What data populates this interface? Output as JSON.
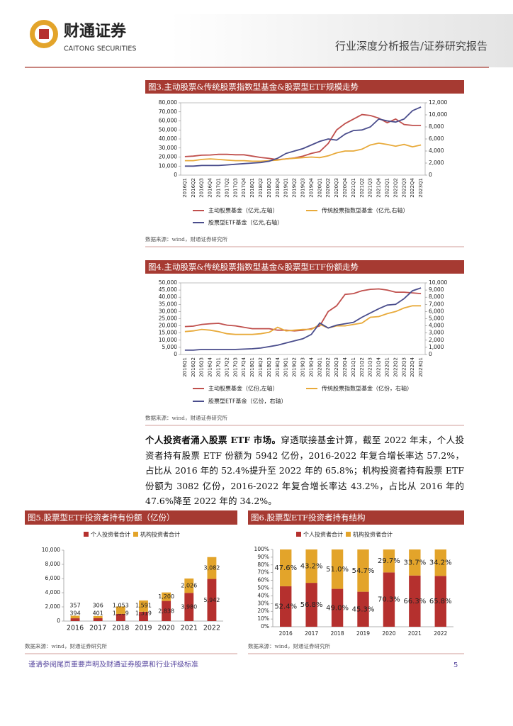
{
  "header": {
    "logo_cn": "财通证券",
    "logo_en": "CAITONG SECURITIES",
    "report_type": "行业深度分析报告/证券研究报告"
  },
  "chart_data": [
    {
      "type": "line",
      "title": "图3.主动股票&传统股票指数型基金&股票型ETF规模走势",
      "source": "数据来源：wind，财通证券研究所",
      "categories": [
        "2016Q1",
        "2016Q2",
        "2016Q3",
        "2016Q4",
        "2017Q1",
        "2017Q2",
        "2017Q3",
        "2017Q4",
        "2018Q1",
        "2018Q2",
        "2018Q3",
        "2018Q4",
        "2019Q1",
        "2019Q2",
        "2019Q3",
        "2019Q4",
        "2020Q1",
        "2020Q2",
        "2020Q3",
        "2020Q4",
        "2021Q1",
        "2021Q2",
        "2021Q3",
        "2021Q4",
        "2022Q1",
        "2022Q2",
        "2022Q3",
        "2022Q4",
        "2023Q1"
      ],
      "ylim": [
        0,
        80000
      ],
      "yticks": [
        0,
        {
          "value": 10000,
          "label": "10,000"
        },
        {
          "value": 20000,
          "label": "20,000"
        },
        {
          "value": 30000,
          "label": "30,000"
        },
        {
          "value": 40000,
          "label": "40,000"
        },
        {
          "value": 50000,
          "label": "50,000"
        },
        {
          "value": 60000,
          "label": "60,000"
        },
        {
          "value": 70000,
          "label": "70,000"
        },
        {
          "value": 80000,
          "label": "80,000"
        }
      ],
      "y2lim": [
        0,
        12000
      ],
      "y2ticks": [
        0,
        {
          "value": 2000,
          "label": "2,000"
        },
        {
          "value": 4000,
          "label": "4,000"
        },
        {
          "value": 6000,
          "label": "6,000"
        },
        {
          "value": 8000,
          "label": "8,000"
        },
        {
          "value": 10000,
          "label": "10,000"
        },
        {
          "value": 12000,
          "label": "12,000"
        }
      ],
      "series": [
        {
          "name": "主动股票基金（亿元,左轴）",
          "color": "#c0504d",
          "values": [
            20500,
            21000,
            22000,
            22300,
            23000,
            23000,
            22500,
            22500,
            21000,
            19500,
            18500,
            17000,
            18000,
            19000,
            21000,
            24000,
            26000,
            35000,
            50000,
            57000,
            62000,
            67000,
            66000,
            63000,
            58000,
            62000,
            56000,
            55000,
            55000
          ]
        },
        {
          "name": "传统股票指数型基金（亿元,右轴）",
          "color": "#e8aa3a",
          "axis": "y2",
          "values": [
            2400,
            2400,
            2600,
            2700,
            2600,
            2500,
            2400,
            2400,
            2300,
            2300,
            2400,
            2500,
            2700,
            2800,
            2900,
            3000,
            2900,
            3200,
            3700,
            4000,
            4000,
            4300,
            5000,
            5300,
            5100,
            4800,
            5100,
            4700,
            5000
          ]
        },
        {
          "name": "股票型ETF基金（亿元,右轴）",
          "color": "#4a4d8c",
          "axis": "y2",
          "values": [
            1500,
            1500,
            1600,
            1600,
            1600,
            1700,
            1800,
            1900,
            2000,
            2100,
            2300,
            2800,
            3600,
            4000,
            4400,
            5000,
            5600,
            6000,
            5800,
            6800,
            7400,
            7500,
            8000,
            9300,
            9000,
            8800,
            9300,
            10700,
            11300
          ]
        }
      ]
    },
    {
      "type": "line",
      "title": "图4.主动股票&传统股票指数型基金&股票型ETF份额走势",
      "source": "数据来源：wind，财通证券研究所",
      "categories": [
        "2016Q1",
        "2016Q2",
        "2016Q3",
        "2016Q4",
        "2017Q1",
        "2017Q2",
        "2017Q3",
        "2017Q4",
        "2018Q1",
        "2018Q2",
        "2018Q3",
        "2018Q4",
        "2019Q1",
        "2019Q2",
        "2019Q3",
        "2019Q4",
        "2020Q1",
        "2020Q2",
        "2020Q3",
        "2020Q4",
        "2021Q1",
        "2021Q2",
        "2021Q3",
        "2021Q4",
        "2022Q1",
        "2022Q2",
        "2022Q3",
        "2022Q4",
        "2023Q1"
      ],
      "ylim": [
        0,
        50000
      ],
      "yticks": [
        0,
        {
          "value": 5000,
          "label": "5,000"
        },
        {
          "value": 10000,
          "label": "10,000"
        },
        {
          "value": 15000,
          "label": "15,000"
        },
        {
          "value": 20000,
          "label": "20,000"
        },
        {
          "value": 25000,
          "label": "25,000"
        },
        {
          "value": 30000,
          "label": "30,000"
        },
        {
          "value": 35000,
          "label": "35,000"
        },
        {
          "value": 40000,
          "label": "40,000"
        },
        {
          "value": 45000,
          "label": "45,000"
        },
        {
          "value": 50000,
          "label": "50,000"
        }
      ],
      "y2lim": [
        0,
        10000
      ],
      "y2ticks": [
        0,
        {
          "value": 1000,
          "label": "1,000"
        },
        {
          "value": 2000,
          "label": "2,000"
        },
        {
          "value": 3000,
          "label": "3,000"
        },
        {
          "value": 4000,
          "label": "4,000"
        },
        {
          "value": 5000,
          "label": "5,000"
        },
        {
          "value": 6000,
          "label": "6,000"
        },
        {
          "value": 7000,
          "label": "7,000"
        },
        {
          "value": 8000,
          "label": "8,000"
        },
        {
          "value": 9000,
          "label": "9,000"
        },
        {
          "value": 10000,
          "label": "10,000"
        }
      ],
      "series": [
        {
          "name": "主动股票基金（亿份,左轴）",
          "color": "#c0504d",
          "values": [
            19500,
            19800,
            21000,
            21500,
            21800,
            20500,
            20000,
            19000,
            18000,
            18000,
            18000,
            17000,
            17000,
            16500,
            17000,
            18000,
            20000,
            30000,
            34000,
            42000,
            42500,
            44500,
            45500,
            45800,
            45000,
            43500,
            43500,
            43000,
            42500
          ]
        },
        {
          "name": "传统股票指数型基金（亿份，右轴）",
          "color": "#e8aa3a",
          "axis": "y2",
          "values": [
            3200,
            3300,
            3500,
            3400,
            3200,
            2900,
            2800,
            2800,
            2800,
            2900,
            3100,
            3800,
            3300,
            3400,
            3500,
            3500,
            4200,
            3700,
            4000,
            4000,
            4200,
            4400,
            5200,
            5300,
            5700,
            6000,
            6500,
            6800,
            6800
          ]
        },
        {
          "name": "股票型ETF基金（亿份，右轴）",
          "color": "#4a4d8c",
          "axis": "y2",
          "values": [
            600,
            600,
            700,
            700,
            700,
            700,
            700,
            750,
            800,
            900,
            1100,
            1300,
            1600,
            1900,
            2200,
            2800,
            4400,
            3700,
            4100,
            4300,
            4500,
            5200,
            5800,
            6400,
            6900,
            7000,
            7800,
            8900,
            9300
          ]
        }
      ]
    },
    {
      "type": "stacked_bar",
      "title": "图5.股票型ETF投资者持有份额（亿份）",
      "source": "数据来源：wind，财通证券研究所",
      "categories": [
        "2016",
        "2017",
        "2018",
        "2019",
        "2020",
        "2021",
        "2022"
      ],
      "ylim": [
        0,
        10000
      ],
      "yticks": [
        0,
        {
          "value": 2000,
          "label": "2,000"
        },
        {
          "value": 4000,
          "label": "4,000"
        },
        {
          "value": 6000,
          "label": "6,000"
        },
        {
          "value": 8000,
          "label": "8,000"
        },
        {
          "value": 10000,
          "label": "10,000"
        }
      ],
      "series": [
        {
          "name": "个人投资者合计",
          "color": "#b5302e",
          "values": [
            394,
            401,
            1009,
            1319,
            2838,
            3980,
            5942
          ],
          "value_labels": [
            "394",
            "401",
            "1,009",
            "1,319",
            "2,838",
            "3,980",
            "5,942"
          ]
        },
        {
          "name": "机构投资者合计",
          "color": "#e3a42a",
          "values": [
            357,
            306,
            1053,
            1591,
            1200,
            2026,
            3082
          ],
          "value_labels": [
            "357",
            "306",
            "1,053",
            "1,591",
            "1,200",
            "2,026",
            "3,082"
          ]
        }
      ]
    },
    {
      "type": "stacked_bar",
      "title": "图6.股票型ETF投资者持有结构",
      "source": "数据来源：wind，财通证券研究所",
      "categories": [
        "2016",
        "2017",
        "2018",
        "2019",
        "2020",
        "2021",
        "2022"
      ],
      "ylim": [
        0,
        100
      ],
      "yticks": [
        {
          "value": 0,
          "label": "0%"
        },
        {
          "value": 10,
          "label": "10%"
        },
        {
          "value": 20,
          "label": "20%"
        },
        {
          "value": 30,
          "label": "30%"
        },
        {
          "value": 40,
          "label": "40%"
        },
        {
          "value": 50,
          "label": "50%"
        },
        {
          "value": 60,
          "label": "60%"
        },
        {
          "value": 70,
          "label": "70%"
        },
        {
          "value": 80,
          "label": "80%"
        },
        {
          "value": 90,
          "label": "90%"
        },
        {
          "value": 100,
          "label": "100%"
        }
      ],
      "series": [
        {
          "name": "个人投资者合计",
          "color": "#b5302e",
          "values": [
            52.4,
            56.8,
            49.0,
            45.3,
            70.3,
            66.3,
            65.8
          ],
          "value_labels": [
            "52.4%",
            "56.8%",
            "49.0%",
            "45.3%",
            "70.3%",
            "66.3%",
            "65.8%"
          ]
        },
        {
          "name": "机构投资者合计",
          "color": "#e3a42a",
          "values": [
            47.6,
            43.2,
            51.0,
            54.7,
            29.7,
            33.7,
            34.2
          ],
          "value_labels": [
            "47.6%",
            "43.2%",
            "51.0%",
            "54.7%",
            "29.7%",
            "33.7%",
            "34.2%"
          ]
        }
      ]
    }
  ],
  "body": {
    "lead": "个人投资者涌入股票 ETF 市场。",
    "text": "穿透联接基金计算，截至 2022 年末，个人投资者持有股票 ETF 份额为 5942 亿份，2016-2022 年复合增长率达 57.2%，占比从 2016 年的 52.4%提升至 2022 年的 65.8%；机构投资者持有股票 ETF 份额为 3082 亿份，2016-2022 年复合增长率达 43.2%，占比从 2016 年的 47.6%降至 2022 年的 34.2%。"
  },
  "footer": {
    "disclaimer": "谨请参阅尾页重要声明及财通证券股票和行业评级标准",
    "page": "5"
  }
}
